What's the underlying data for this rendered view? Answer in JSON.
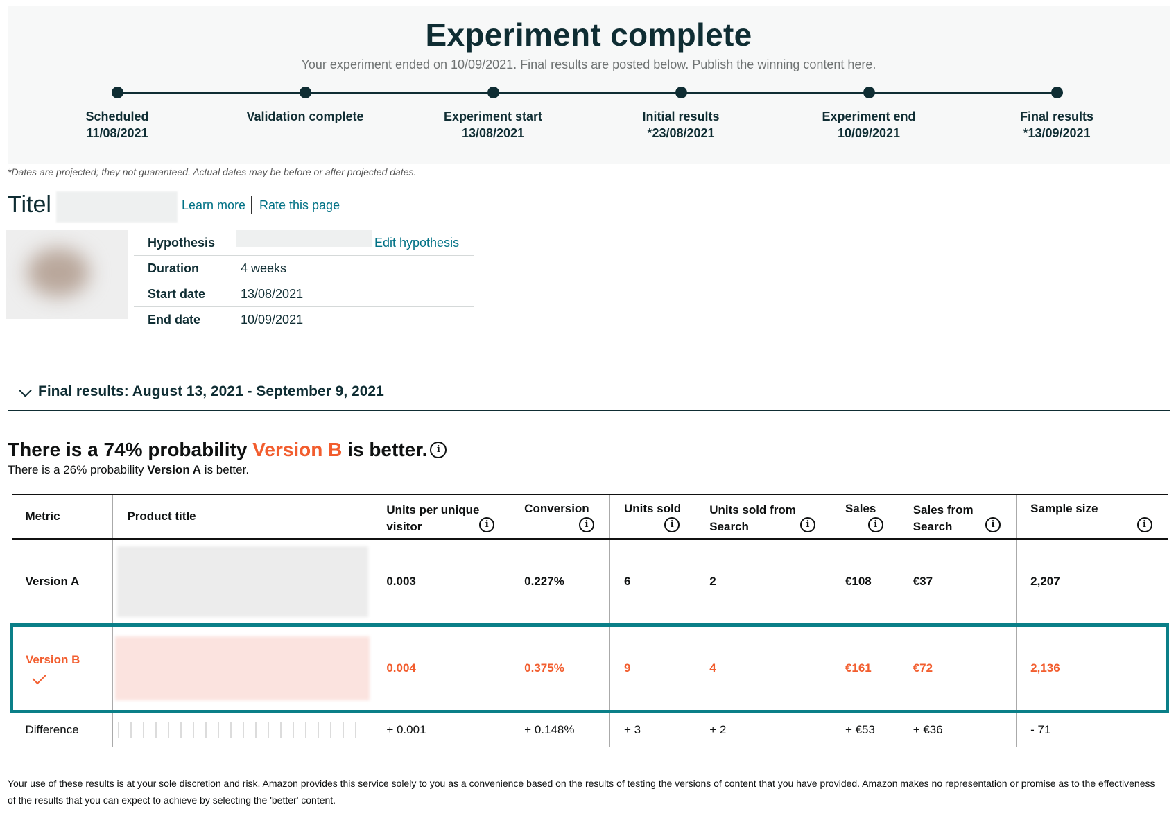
{
  "header": {
    "title": "Experiment complete",
    "subtitle": "Your experiment ended on 10/09/2021. Final results are posted below. Publish the winning content here."
  },
  "timeline": [
    {
      "label": "Scheduled",
      "date": "11/08/2021"
    },
    {
      "label": "Validation complete",
      "date": ""
    },
    {
      "label": "Experiment start",
      "date": "13/08/2021"
    },
    {
      "label": "Initial results",
      "date": "*23/08/2021"
    },
    {
      "label": "Experiment end",
      "date": "10/09/2021"
    },
    {
      "label": "Final results",
      "date": "*13/09/2021"
    }
  ],
  "dates_note": "*Dates are projected; they not guaranteed. Actual dates may be before or after projected dates.",
  "title_row": {
    "label": "Titel",
    "learn_more": "Learn more",
    "rate_page": "Rate this page"
  },
  "details": {
    "hypothesis_label": "Hypothesis",
    "edit_hypothesis": "Edit hypothesis",
    "duration_label": "Duration",
    "duration_value": "4 weeks",
    "start_label": "Start date",
    "start_value": "13/08/2021",
    "end_label": "End date",
    "end_value": "10/09/2021"
  },
  "results": {
    "heading": "Final results: August 13, 2021 - September 9, 2021",
    "prob_main_prefix": "There is a 74% probability ",
    "prob_main_version": "Version B",
    "prob_main_suffix": " is better.",
    "prob_sub_prefix": "There is a 26% probability ",
    "prob_sub_version": "Version A",
    "prob_sub_suffix": " is better."
  },
  "table": {
    "headers": [
      "Metric",
      "Product title",
      "Units per unique visitor",
      "Conversion",
      "Units sold",
      "Units sold from Search",
      "Sales",
      "Sales from Search",
      "Sample size"
    ],
    "rows": {
      "a": [
        "Version A",
        "",
        "0.003",
        "0.227%",
        "6",
        "2",
        "€108",
        "€37",
        "2,207"
      ],
      "b": [
        "Version B",
        "",
        "0.004",
        "0.375%",
        "9",
        "4",
        "€161",
        "€72",
        "2,136"
      ],
      "diff": [
        "Difference",
        "",
        "+ 0.001",
        "+ 0.148%",
        "+ 3",
        "+ 2",
        "+ €53",
        "+ €36",
        "- 71"
      ]
    }
  },
  "disclaimer": "Your use of these results is at your sole discretion and risk. Amazon provides this service solely to you as a convenience based on the results of testing the versions of content that you have provided. Amazon makes no representation or promise as to the effectiveness of the results that you can expect to achieve by selecting the 'better' content.",
  "icons": {
    "info": "info-icon",
    "chevron": "chevron-down-icon",
    "check": "check-icon"
  },
  "colors": {
    "accent_dark": "#0f2d33",
    "winner": "#f25d2e",
    "highlight_border": "#0a7f88",
    "link": "#007185"
  }
}
